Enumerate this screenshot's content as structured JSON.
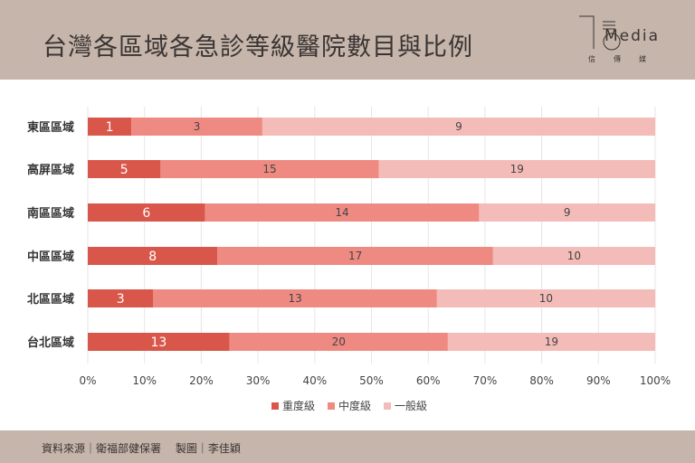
{
  "header": {
    "title": "台灣各區域各急診等級醫院數目與比例",
    "logo_text": "Media",
    "logo_sub": "信傳媒"
  },
  "footer": {
    "text": "資料來源｜衛福部健保署　 製圖｜李佳穎"
  },
  "chart_data": {
    "type": "bar",
    "stacked": true,
    "normalized": true,
    "title": "台灣各區域各急診等級醫院數目與比例",
    "categories": [
      "東區區域",
      "高屏區域",
      "南區區域",
      "中區區域",
      "北區區域",
      "台北區域"
    ],
    "series": [
      {
        "name": "重度級",
        "color": "#d9574a",
        "values": [
          1,
          5,
          6,
          8,
          3,
          13
        ]
      },
      {
        "name": "中度級",
        "color": "#ef8a82",
        "values": [
          3,
          15,
          14,
          17,
          13,
          20
        ]
      },
      {
        "name": "一般級",
        "color": "#f4bcb8",
        "values": [
          9,
          19,
          9,
          10,
          10,
          19
        ]
      }
    ],
    "xticks": [
      "0%",
      "10%",
      "20%",
      "30%",
      "40%",
      "50%",
      "60%",
      "70%",
      "80%",
      "90%",
      "100%"
    ],
    "xlim": [
      0,
      100
    ],
    "grid": true,
    "legend": "bottom"
  }
}
